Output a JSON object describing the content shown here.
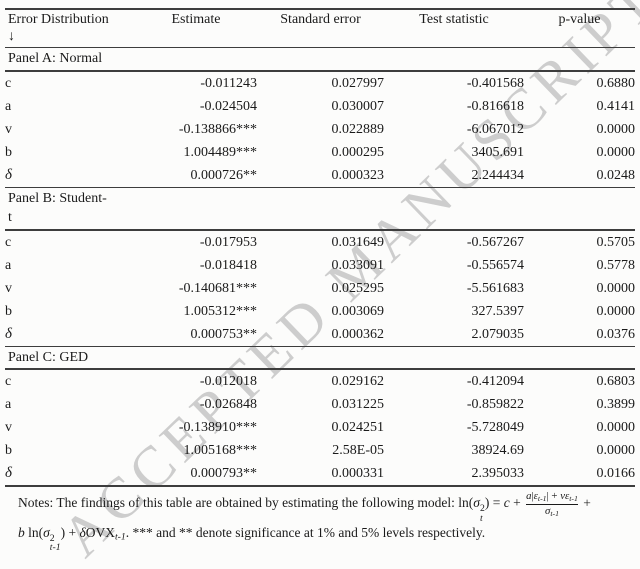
{
  "watermark": "ACCEPTED MANUSCRIPT",
  "header": {
    "columns": [
      "Error Distribution\n↓",
      "Estimate",
      "Standard error",
      "Test statistic",
      "p-value"
    ]
  },
  "panels": [
    {
      "label": "Panel A: Normal",
      "rows": [
        {
          "param": "c",
          "estimate": "-0.011243",
          "std_error": "0.027997",
          "test_stat": "-0.401568",
          "p_value": "0.6880"
        },
        {
          "param": "a",
          "estimate": "-0.024504",
          "std_error": "0.030007",
          "test_stat": "-0.816618",
          "p_value": "0.4141"
        },
        {
          "param": "v",
          "estimate": "-0.138866***",
          "std_error": "0.022889",
          "test_stat": "-6.067012",
          "p_value": "0.0000"
        },
        {
          "param": "b",
          "estimate": "1.004489***",
          "std_error": "0.000295",
          "test_stat": "3405.691",
          "p_value": "0.0000"
        },
        {
          "param": "δ",
          "estimate": "0.000726**",
          "std_error": "0.000323",
          "test_stat": "2.244434",
          "p_value": "0.0248"
        }
      ]
    },
    {
      "label": "Panel B: Student-\nt",
      "rows": [
        {
          "param": "c",
          "estimate": "-0.017953",
          "std_error": "0.031649",
          "test_stat": "-0.567267",
          "p_value": "0.5705"
        },
        {
          "param": "a",
          "estimate": "-0.018418",
          "std_error": "0.033091",
          "test_stat": "-0.556574",
          "p_value": "0.5778"
        },
        {
          "param": "v",
          "estimate": "-0.140681***",
          "std_error": "0.025295",
          "test_stat": "-5.561683",
          "p_value": "0.0000"
        },
        {
          "param": "b",
          "estimate": "1.005312***",
          "std_error": "0.003069",
          "test_stat": "327.5397",
          "p_value": "0.0000"
        },
        {
          "param": "δ",
          "estimate": "0.000753**",
          "std_error": "0.000362",
          "test_stat": "2.079035",
          "p_value": "0.0376"
        }
      ]
    },
    {
      "label": "Panel C: GED",
      "rows": [
        {
          "param": "c",
          "estimate": "-0.012018",
          "std_error": "0.029162",
          "test_stat": "-0.412094",
          "p_value": "0.6803"
        },
        {
          "param": "a",
          "estimate": "-0.026848",
          "std_error": "0.031225",
          "test_stat": "-0.859822",
          "p_value": "0.3899"
        },
        {
          "param": "v",
          "estimate": "-0.138910***",
          "std_error": "0.024251",
          "test_stat": "-5.728049",
          "p_value": "0.0000"
        },
        {
          "param": "b",
          "estimate": "1.005168***",
          "std_error": "2.58E-05",
          "test_stat": "38924.69",
          "p_value": "0.0000"
        },
        {
          "param": "δ",
          "estimate": "0.000793**",
          "std_error": "0.000331",
          "test_stat": "2.395033",
          "p_value": "0.0166"
        }
      ]
    }
  ],
  "notes": {
    "line1_tokens": [
      [
        "r",
        "Notes: The findings of this table are obtained by estimating the following model: ln("
      ],
      [
        "i",
        "σ"
      ],
      [
        "ss",
        "2|t"
      ],
      [
        "r",
        ") = "
      ],
      [
        "i",
        "c"
      ],
      [
        "r",
        " + "
      ]
    ],
    "frac_num_tokens": [
      [
        "i",
        "a"
      ],
      [
        "r",
        "|"
      ],
      [
        "i",
        "ε"
      ],
      [
        "sub",
        "t-1"
      ],
      [
        "r",
        "| + "
      ],
      [
        "i",
        "v"
      ],
      [
        "i",
        "ε"
      ],
      [
        "sub",
        "t-1"
      ]
    ],
    "frac_den_tokens": [
      [
        "i",
        "σ"
      ],
      [
        "sub",
        "t-1"
      ]
    ],
    "line1_tail_tokens": [
      [
        "r",
        " +"
      ]
    ],
    "line2_tokens": [
      [
        "i",
        "b"
      ],
      [
        "r",
        " ln("
      ],
      [
        "i",
        "σ"
      ],
      [
        "ss",
        "2|t-1"
      ],
      [
        "r",
        ") + "
      ],
      [
        "i",
        "δ"
      ],
      [
        "r",
        "OVX"
      ],
      [
        "sub",
        "t-1"
      ],
      [
        "r",
        ". *** and ** denote significance at 1% and 5% levels respectively."
      ]
    ]
  }
}
